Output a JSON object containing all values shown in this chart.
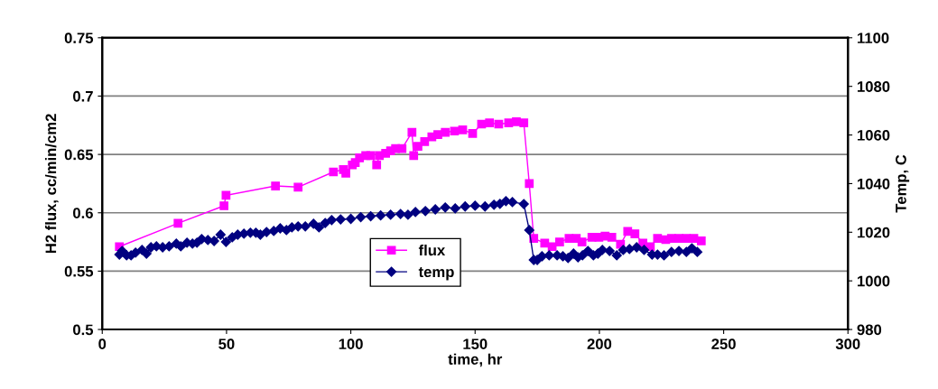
{
  "chart_data": {
    "type": "line",
    "xlabel": "time, hr",
    "ylabel": "H2 flux, cc/min/cm2",
    "y2label": "Temp, C",
    "xlim": [
      0,
      300
    ],
    "xticks": [
      0,
      50,
      100,
      150,
      200,
      250,
      300
    ],
    "ylim": [
      0.5,
      0.75
    ],
    "yticks": [
      0.5,
      0.55,
      0.6,
      0.65,
      0.7,
      0.75
    ],
    "y2lim": [
      980,
      1100
    ],
    "y2ticks": [
      980,
      1000,
      1020,
      1040,
      1060,
      1080,
      1100
    ],
    "grid": "y",
    "legend": "bottom",
    "series": [
      {
        "name": "flux",
        "color": "#ff00ff",
        "marker": "square",
        "axis": "y",
        "x": [
          6.9,
          30.5,
          49,
          49.8,
          69.7,
          78.8,
          93,
          97,
          98,
          100.6,
          101.8,
          103.5,
          106,
          108,
          110.4,
          111.5,
          114,
          116,
          118,
          120.6,
          124.6,
          125.3,
          127,
          129.7,
          132.6,
          135,
          138,
          141.7,
          145,
          149,
          152.6,
          155.8,
          159.5,
          163.5,
          166.6,
          169.6,
          171.8,
          173.6,
          178,
          181,
          184,
          187.8,
          190.7,
          193,
          197,
          199.8,
          202.3,
          205,
          208.5,
          211.4,
          214.3,
          217.5,
          220.5,
          223.4,
          226.7,
          229,
          232,
          235,
          238,
          241
        ],
        "values": [
          0.571,
          0.591,
          0.606,
          0.615,
          0.623,
          0.622,
          0.635,
          0.637,
          0.634,
          0.641,
          0.643,
          0.647,
          0.649,
          0.649,
          0.641,
          0.649,
          0.651,
          0.653,
          0.655,
          0.655,
          0.669,
          0.649,
          0.657,
          0.661,
          0.665,
          0.667,
          0.669,
          0.67,
          0.671,
          0.668,
          0.676,
          0.677,
          0.676,
          0.677,
          0.678,
          0.677,
          0.625,
          0.578,
          0.574,
          0.571,
          0.575,
          0.578,
          0.578,
          0.575,
          0.579,
          0.579,
          0.58,
          0.579,
          0.573,
          0.584,
          0.582,
          0.574,
          0.571,
          0.578,
          0.577,
          0.578,
          0.578,
          0.578,
          0.578,
          0.576
        ]
      },
      {
        "name": "temp",
        "color": "#000080",
        "marker": "diamond",
        "axis": "y2",
        "x": [
          6.9,
          8,
          9.8,
          11.6,
          13.4,
          16,
          17.8,
          19.6,
          21.8,
          24.3,
          26.9,
          29.8,
          31.6,
          34.1,
          36.3,
          38.1,
          40,
          42.5,
          45,
          47.6,
          49.8,
          52.3,
          54.5,
          57,
          59.6,
          61.8,
          63.6,
          66.1,
          69,
          71.6,
          74.1,
          76.3,
          78.8,
          81.7,
          85,
          87.2,
          89.7,
          92.3,
          95.9,
          100,
          104,
          108,
          112,
          116,
          120,
          123,
          126,
          130,
          134,
          138,
          142,
          146,
          150,
          154,
          157.6,
          160,
          162.4,
          165,
          169.6,
          171.8,
          173.6,
          175,
          176.9,
          179.8,
          183,
          185.3,
          187.4,
          189.6,
          191.4,
          193.2,
          195.4,
          197.6,
          199.4,
          201.2,
          204.1,
          207,
          209.6,
          212.1,
          215,
          218,
          221.2,
          223.4,
          226,
          229,
          232,
          235,
          237.2,
          239.4
        ],
        "values": [
          1010.8,
          1012.3,
          1010.5,
          1010.5,
          1011.6,
          1012.7,
          1011.2,
          1013.8,
          1014.2,
          1013.8,
          1014.2,
          1015.3,
          1014.2,
          1015.7,
          1015.3,
          1015.7,
          1017.2,
          1016.8,
          1016.4,
          1019,
          1016,
          1017.9,
          1019,
          1019.4,
          1019.8,
          1019.8,
          1019,
          1020.1,
          1020.5,
          1021.6,
          1020.9,
          1022,
          1022.4,
          1022.4,
          1023.5,
          1022,
          1023.8,
          1025,
          1025.3,
          1025.5,
          1026.2,
          1026.6,
          1026.9,
          1027.2,
          1027.5,
          1027.2,
          1028.3,
          1028.7,
          1029.4,
          1030.2,
          1029.8,
          1030.6,
          1030.9,
          1030.6,
          1031.3,
          1031.7,
          1032.8,
          1032.4,
          1031.6,
          1020.9,
          1008.6,
          1008.6,
          1010.1,
          1010.5,
          1010.5,
          1010.1,
          1009.4,
          1011.2,
          1009.7,
          1010.5,
          1012.3,
          1010.5,
          1011.2,
          1012.7,
          1012.3,
          1010.5,
          1012.7,
          1013.1,
          1013.8,
          1012.7,
          1010.8,
          1010.8,
          1010.5,
          1011.9,
          1012.3,
          1011.9,
          1013.4,
          1011.9
        ]
      }
    ]
  }
}
